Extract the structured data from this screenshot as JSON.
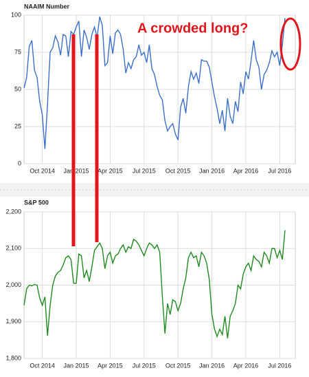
{
  "chart_data": [
    {
      "type": "line",
      "title": "NAAIM Number",
      "annotation": "A crowded long?",
      "color": "#3b6fc9",
      "grid": true,
      "categories": [
        null,
        null,
        null,
        null,
        null,
        null,
        null,
        "Oct 2014",
        null,
        null,
        null,
        null,
        null,
        null,
        null,
        null,
        null,
        null,
        null,
        null,
        "Jan 2015",
        null,
        null,
        null,
        null,
        null,
        null,
        null,
        null,
        null,
        null,
        null,
        null,
        "Apr 2015",
        null,
        null,
        null,
        null,
        null,
        null,
        null,
        null,
        null,
        null,
        null,
        null,
        "Jul 2015",
        null,
        null,
        null,
        null,
        null,
        null,
        null,
        null,
        null,
        null,
        null,
        null,
        "Oct 2015",
        null,
        null,
        null,
        null,
        null,
        null,
        null,
        null,
        null,
        null,
        null,
        null,
        "Jan 2016",
        null,
        null,
        null,
        null,
        null,
        null,
        null,
        null,
        null,
        null,
        null,
        null,
        "Apr 2016",
        null,
        null,
        null,
        null,
        null,
        null,
        null,
        null,
        null,
        null,
        null,
        null,
        "Jul 2016",
        null,
        null
      ],
      "values": [
        51,
        58,
        79,
        83,
        63,
        58,
        42,
        33,
        10,
        40,
        75,
        78,
        86,
        82,
        73,
        87,
        86,
        72,
        89,
        87,
        92,
        96,
        72,
        90,
        85,
        77,
        87,
        92,
        85,
        99,
        93,
        66,
        68,
        86,
        74,
        88,
        90,
        87,
        77,
        61,
        68,
        64,
        70,
        72,
        80,
        73,
        75,
        68,
        80,
        64,
        60,
        52,
        46,
        43,
        29,
        22,
        25,
        27,
        20,
        16,
        38,
        44,
        34,
        52,
        62,
        57,
        61,
        54,
        70,
        69,
        69,
        65,
        55,
        45,
        37,
        27,
        36,
        22,
        44,
        32,
        27,
        42,
        35,
        55,
        47,
        62,
        57,
        69,
        83,
        70,
        65,
        50,
        60,
        63,
        68,
        76,
        72,
        75,
        66,
        80,
        98
      ],
      "ylim": [
        0,
        100
      ],
      "yticks": [
        0,
        25,
        50,
        75,
        100
      ]
    },
    {
      "type": "line",
      "title": "S&P 500",
      "color": "#1f8a1f",
      "grid": true,
      "categories": [
        null,
        null,
        null,
        null,
        null,
        null,
        null,
        "Oct 2014",
        null,
        null,
        null,
        null,
        null,
        null,
        null,
        null,
        null,
        null,
        null,
        null,
        "Jan 2015",
        null,
        null,
        null,
        null,
        null,
        null,
        null,
        null,
        null,
        null,
        null,
        null,
        "Apr 2015",
        null,
        null,
        null,
        null,
        null,
        null,
        null,
        null,
        null,
        null,
        null,
        null,
        "Jul 2015",
        null,
        null,
        null,
        null,
        null,
        null,
        null,
        null,
        null,
        null,
        null,
        null,
        "Oct 2015",
        null,
        null,
        null,
        null,
        null,
        null,
        null,
        null,
        null,
        null,
        null,
        null,
        "Jan 2016",
        null,
        null,
        null,
        null,
        null,
        null,
        null,
        null,
        null,
        null,
        null,
        null,
        "Apr 2016",
        null,
        null,
        null,
        null,
        null,
        null,
        null,
        null,
        null,
        null,
        null,
        null,
        "Jul 2016",
        null,
        null
      ],
      "values": [
        1945,
        1990,
        2000,
        1998,
        2002,
        2000,
        1965,
        1945,
        1968,
        1862,
        1945,
        2000,
        2025,
        2035,
        2040,
        2055,
        2075,
        2080,
        2070,
        2005,
        2005,
        2085,
        2080,
        2020,
        2040,
        2010,
        2050,
        2095,
        2105,
        2115,
        2100,
        2045,
        2080,
        2090,
        2060,
        2080,
        2085,
        2100,
        2110,
        2090,
        2105,
        2100,
        2125,
        2120,
        2110,
        2095,
        2080,
        2100,
        2115,
        2110,
        2100,
        2110,
        2090,
        1970,
        1868,
        1950,
        1920,
        1960,
        1955,
        1930,
        1950,
        1990,
        2020,
        2075,
        2090,
        2075,
        2080,
        2050,
        2090,
        2080,
        2060,
        2015,
        1920,
        1880,
        1860,
        1880,
        1865,
        1915,
        1855,
        1915,
        1930,
        1950,
        2000,
        1990,
        2030,
        2050,
        2060,
        2040,
        2080,
        2070,
        2065,
        2050,
        2090,
        2080,
        2060,
        2100,
        2100,
        2075,
        2095,
        2070,
        2150
      ],
      "ylim": [
        1800,
        2200
      ],
      "yticks": [
        {
          "value": 1800,
          "label": "1,800"
        },
        {
          "value": 1900,
          "label": "1,900"
        },
        {
          "value": 2000,
          "label": "2,000"
        },
        {
          "value": 2100,
          "label": "2,100"
        },
        {
          "value": 2200,
          "label": "2,200"
        }
      ]
    }
  ]
}
